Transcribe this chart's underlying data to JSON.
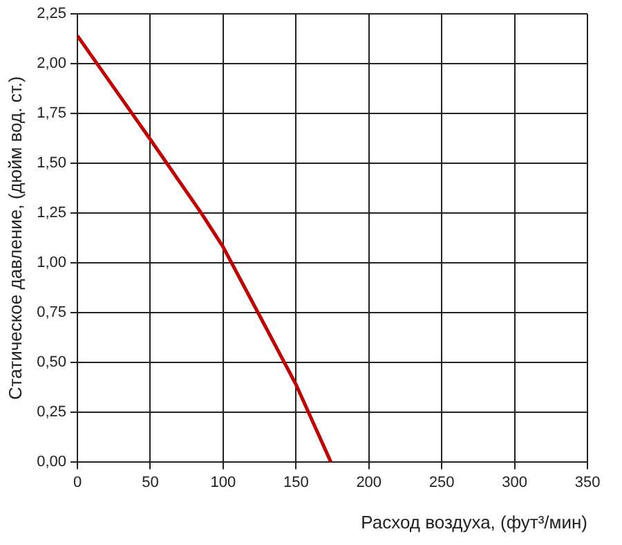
{
  "chart_data": {
    "type": "line",
    "xlabel": "Расход воздуха, (фут³/мин)",
    "ylabel": "Статическое давление, (дюйм вод. ст.)",
    "series": [
      {
        "color": "#c00000",
        "x": [
          0,
          25,
          50,
          85,
          100,
          124,
          150,
          174
        ],
        "values": [
          2.14,
          1.88,
          1.62,
          1.25,
          1.08,
          0.75,
          0.39,
          0
        ]
      }
    ],
    "xlim": [
      0,
      350
    ],
    "xticks": [
      0,
      50,
      100,
      150,
      200,
      250,
      300,
      350
    ],
    "ylim": [
      0,
      2.25
    ],
    "yticks": [
      {
        "value": 0,
        "label": "0,00"
      },
      {
        "value": 0.25,
        "label": "0,25"
      },
      {
        "value": 0.5,
        "label": "0,50"
      },
      {
        "value": 0.75,
        "label": "0,75"
      },
      {
        "value": 1,
        "label": "1,00"
      },
      {
        "value": 1.25,
        "label": "1,25"
      },
      {
        "value": 1.5,
        "label": "1,50"
      },
      {
        "value": 1.75,
        "label": "1,75"
      },
      {
        "value": 2,
        "label": "2,00"
      },
      {
        "value": 2.25,
        "label": "2,25"
      }
    ],
    "grid": true,
    "legend": false,
    "marker": "none",
    "line_style": "solid"
  }
}
